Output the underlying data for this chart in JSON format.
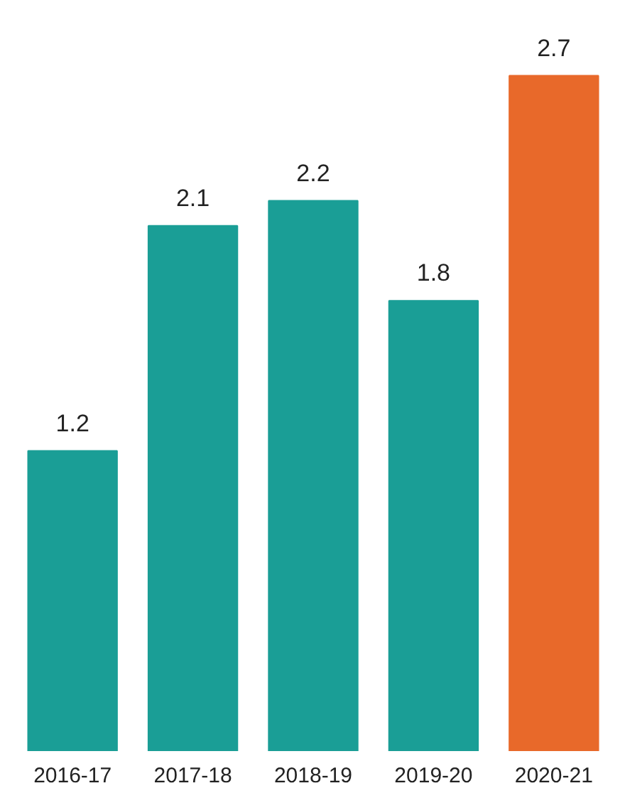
{
  "chart_data": {
    "type": "bar",
    "categories": [
      "2016-17",
      "2017-18",
      "2018-19",
      "2019-20",
      "2020-21"
    ],
    "values": [
      1.2,
      2.1,
      2.2,
      1.8,
      2.7
    ],
    "colors": [
      "#1a9e96",
      "#1a9e96",
      "#1a9e96",
      "#1a9e96",
      "#e8692a"
    ],
    "data_labels": true,
    "grid": false
  }
}
